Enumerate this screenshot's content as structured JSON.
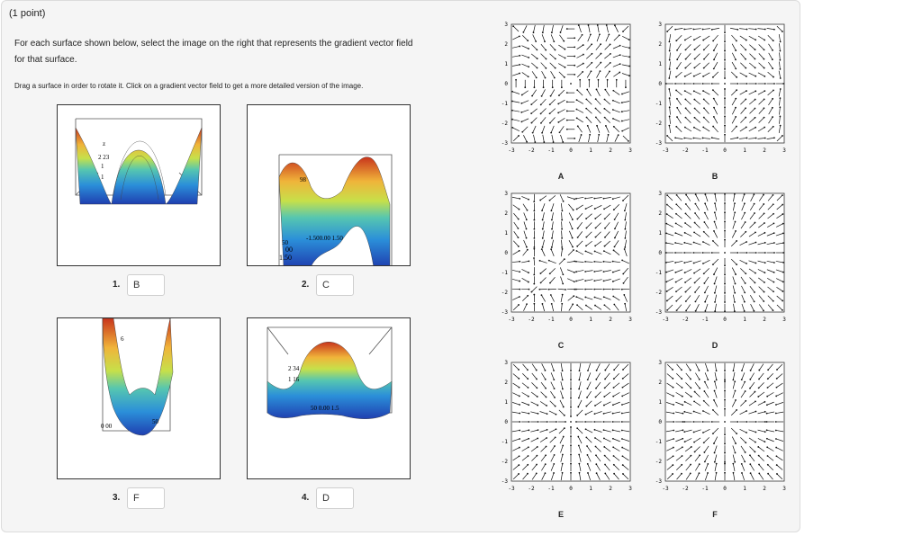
{
  "header": {
    "points": "(1 point)",
    "question_line1": "For each surface shown below, select the image on the right that represents the gradient vector field",
    "question_line2": "for that surface.",
    "instructions": "Drag a surface in order to rotate it. Click on a gradient vector field to get a more detailed version of the image."
  },
  "surfaces": [
    {
      "number": "1.",
      "answer": "B",
      "plot_labels": [
        "2 23",
        "1",
        "1",
        "z"
      ]
    },
    {
      "number": "2.",
      "answer": "C",
      "plot_labels": [
        "98",
        "-1.500.00 1.50",
        "50",
        "00",
        "1.50"
      ]
    },
    {
      "number": "3.",
      "answer": "F",
      "plot_labels": [
        "6",
        "50",
        "0 00"
      ]
    },
    {
      "number": "4.",
      "answer": "D",
      "plot_labels": [
        "2 34",
        "1 16",
        "50 0.00 1.5"
      ]
    }
  ],
  "fields": [
    {
      "label": "A",
      "pattern": "vortex"
    },
    {
      "label": "B",
      "pattern": "saddle-x"
    },
    {
      "label": "C",
      "pattern": "four-sinks"
    },
    {
      "label": "D",
      "pattern": "radial-out"
    },
    {
      "label": "E",
      "pattern": "radial-in"
    },
    {
      "label": "F",
      "pattern": "ring"
    }
  ],
  "axis_ticks": [
    "-3",
    "-2",
    "-1",
    "0",
    "1",
    "2",
    "3"
  ],
  "colors": {
    "panel": "#f5f5f5",
    "border": "#dcdcdc",
    "arrow": "#111111"
  }
}
